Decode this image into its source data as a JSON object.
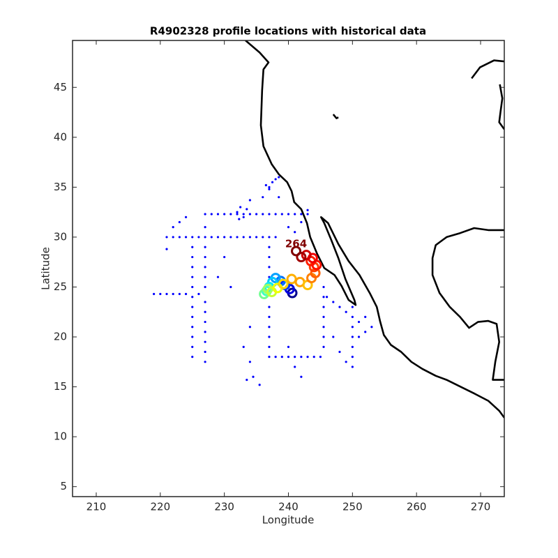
{
  "chart_data": {
    "type": "scatter",
    "title": "R4902328 profile locations with historical data",
    "x_label": "Longitude",
    "y_label": "Latitude",
    "xlim": [
      206.3,
      273.7
    ],
    "ylim": [
      4,
      49.7
    ],
    "xticks": [
      210,
      220,
      230,
      240,
      250,
      260,
      270
    ],
    "yticks": [
      5,
      10,
      15,
      20,
      25,
      30,
      35,
      40,
      45
    ],
    "series": [
      {
        "style": "line",
        "color": "#000000",
        "x": [
          233.3,
          235.5,
          236.9,
          236.1,
          235.9,
          235.7,
          236.1,
          237.4,
          238.5,
          239.8,
          240.5,
          240.9,
          242.0,
          242.9,
          243.4,
          244.5,
          245.6,
          247.2,
          248.3,
          249.4,
          250.5,
          250.3,
          248.9,
          247.8,
          246.7,
          245.6,
          245.1,
          246.2,
          247.8,
          249.4,
          251.1,
          252.7,
          253.8,
          254.3,
          254.9,
          256.0,
          257.6,
          259.2,
          260.9,
          263.0,
          264.7,
          266.9,
          269.1,
          271.2,
          272.9,
          273.7,
          null,
          273.7,
          271.2,
          269.0,
          266.8,
          264.7,
          263.0,
          262.5,
          262.5,
          263.6,
          265.2,
          266.8,
          268.2,
          269.6,
          271.2,
          272.5,
          272.9,
          272.3,
          271.9,
          273.7,
          null,
          268.6,
          269.9,
          272.1,
          273.7,
          null,
          273.0,
          273.4,
          273.1,
          272.9,
          273.7,
          null,
          247.0,
          247.5,
          247.8
        ],
        "y": [
          49.7,
          48.5,
          47.5,
          46.8,
          44.7,
          41.2,
          39.1,
          37.3,
          36.3,
          35.5,
          34.6,
          33.5,
          32.8,
          31.4,
          30.0,
          28.3,
          26.9,
          26.2,
          25.1,
          23.7,
          23.2,
          23.7,
          25.8,
          27.9,
          29.7,
          31.4,
          32.0,
          31.4,
          29.3,
          27.6,
          26.2,
          24.4,
          23.0,
          21.6,
          20.2,
          19.2,
          18.5,
          17.5,
          16.8,
          16.1,
          15.7,
          15.0,
          14.3,
          13.6,
          12.6,
          11.9,
          null,
          30.7,
          30.7,
          30.9,
          30.4,
          30.0,
          29.2,
          27.9,
          26.2,
          24.4,
          23.0,
          22.0,
          20.9,
          21.5,
          21.6,
          21.3,
          19.5,
          17.5,
          15.7,
          15.7,
          null,
          45.9,
          47.0,
          47.7,
          47.6,
          null,
          45.3,
          43.9,
          42.5,
          41.5,
          40.8,
          null,
          42.3,
          41.9,
          42.0
        ]
      },
      {
        "style": "marker",
        "color": "#0000ff",
        "x": [
          221,
          222,
          223,
          224,
          225,
          226,
          227,
          228,
          229,
          230,
          231,
          232,
          233,
          234,
          235,
          236,
          237,
          238,
          225,
          225,
          225,
          225,
          225,
          225,
          225,
          225,
          225,
          225,
          225,
          225,
          227,
          227,
          227,
          227,
          227,
          227,
          227,
          227,
          227,
          227,
          227,
          227,
          227,
          227,
          228,
          229,
          230,
          231,
          232,
          233,
          234,
          235,
          236,
          237,
          238,
          239,
          240,
          241,
          242,
          243,
          219,
          220,
          221,
          222,
          223,
          224,
          226,
          237,
          237,
          237,
          237,
          237,
          237,
          237,
          237,
          237,
          237,
          238,
          239,
          240,
          241,
          242,
          243,
          244,
          245,
          245.5,
          245.5,
          245.5,
          245.5,
          245.5,
          245.5,
          245.5,
          250,
          250,
          250,
          250,
          250,
          250,
          250,
          246,
          247,
          248,
          249,
          251,
          252,
          253,
          232,
          232.5,
          233,
          233.5,
          232.3,
          237,
          237.5,
          238,
          238.5,
          237,
          236.5,
          222,
          223,
          224,
          221,
          234,
          236,
          240,
          241,
          242,
          243,
          238.5,
          233.5,
          234.5,
          235.5,
          234,
          241,
          242,
          240,
          248,
          249,
          247,
          251,
          252,
          230,
          229,
          231,
          234,
          233
        ],
        "y": [
          30,
          30,
          30,
          30,
          30,
          30,
          30,
          30,
          30,
          30,
          30,
          30,
          30,
          30,
          30,
          30,
          30,
          30,
          18,
          19,
          20,
          21,
          22,
          23,
          24,
          25,
          26,
          27,
          28,
          29,
          17.5,
          18.5,
          19.5,
          20.5,
          21.5,
          22.5,
          23.5,
          25,
          26,
          27,
          28,
          29,
          31,
          32.3,
          32.3,
          32.3,
          32.3,
          32.3,
          32.3,
          32.3,
          32.3,
          32.3,
          32.3,
          32.3,
          32.3,
          32.3,
          32.3,
          32.3,
          32.3,
          32.3,
          24.3,
          24.3,
          24.3,
          24.3,
          24.3,
          24.3,
          24.3,
          18,
          19,
          20,
          21,
          22,
          23,
          26,
          27,
          28,
          29,
          18,
          18,
          18,
          18,
          18,
          18,
          18,
          18,
          19,
          20,
          21,
          22,
          23,
          24,
          25,
          17,
          18,
          19,
          20,
          21,
          22,
          23,
          24,
          23.5,
          23,
          22.5,
          20,
          20.5,
          21,
          32.5,
          33,
          32,
          32.8,
          31.8,
          35,
          35.5,
          35.8,
          36,
          34.8,
          35.2,
          31,
          31.5,
          32,
          28.8,
          33.7,
          34,
          31,
          30.5,
          31.5,
          32.7,
          34,
          15.7,
          16,
          15.2,
          17.5,
          17,
          16,
          19,
          18.5,
          17.5,
          20,
          21.5,
          22,
          28,
          26,
          25,
          21,
          19
        ]
      },
      {
        "style": "ring",
        "x": [
          240.6,
          240.2,
          239.5,
          238.8,
          238.0,
          237.5,
          237.0,
          236.6,
          236.2,
          236.8,
          237.4,
          238.3,
          239.2,
          240.5,
          241.8,
          243.0,
          243.6,
          244.2,
          244.0,
          243.5,
          244.4,
          243.8,
          242.8,
          242.0,
          241.2
        ],
        "y": [
          24.4,
          24.8,
          25.2,
          25.6,
          25.9,
          25.5,
          25.0,
          24.6,
          24.3,
          24.8,
          24.5,
          24.9,
          25.3,
          25.8,
          25.5,
          25.2,
          25.9,
          26.4,
          27.0,
          27.6,
          27.2,
          27.9,
          28.2,
          28.0,
          28.6
        ],
        "colors": [
          "#00008f",
          "#0000df",
          "#0030ff",
          "#0070ff",
          "#00a0ff",
          "#00c8ff",
          "#10e8ef",
          "#40ffbf",
          "#70ff8f",
          "#a0ff60",
          "#c8ff30",
          "#f0ff00",
          "#ffd800",
          "#ffb000",
          "#ffa000",
          "#ffc000",
          "#ff8000",
          "#ff6000",
          "#ff4000",
          "#ff2000",
          "#ff1000",
          "#f00000",
          "#d00000",
          "#a00000",
          "#800000"
        ]
      }
    ],
    "annotations": [
      {
        "text": "264",
        "x": 241.2,
        "y": 29.3,
        "color": "#800000"
      }
    ]
  }
}
